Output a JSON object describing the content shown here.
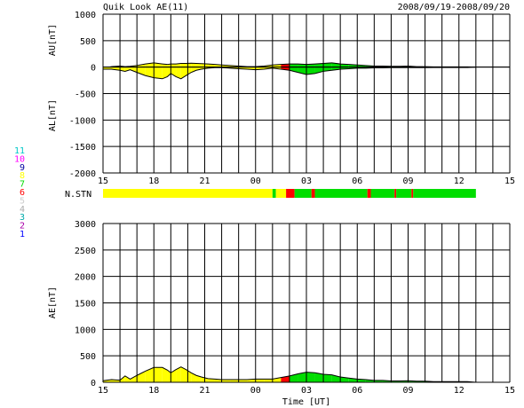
{
  "header": {
    "title": "Quik Look AE(11)",
    "date_range": "2008/09/19-2008/09/20"
  },
  "top_panel": {
    "upper_ylabel": "AU[nT]",
    "lower_ylabel": "AL[nT]",
    "yticks": [
      "1000",
      "500",
      "0",
      "-500",
      "-1000",
      "-1500",
      "-2000"
    ],
    "xticks": [
      "15",
      "18",
      "21",
      "00",
      "03",
      "06",
      "09",
      "12",
      "15"
    ]
  },
  "station_bar": {
    "label": "N.STN"
  },
  "bottom_panel": {
    "ylabel": "AE[nT]",
    "yticks": [
      "3000",
      "2500",
      "2000",
      "1500",
      "1000",
      "500",
      "0"
    ],
    "xticks": [
      "15",
      "18",
      "21",
      "00",
      "03",
      "06",
      "09",
      "12",
      "15"
    ],
    "xlabel": "Time [UT]"
  },
  "legend": {
    "levels": [
      {
        "label": "11",
        "color": "#00c8c8"
      },
      {
        "label": "10",
        "color": "#ff00ff"
      },
      {
        "label": "9",
        "color": "#0000a0"
      },
      {
        "label": "8",
        "color": "#ffff00"
      },
      {
        "label": "7",
        "color": "#00dd00"
      },
      {
        "label": "6",
        "color": "#ff0000"
      },
      {
        "label": "5",
        "color": "#cccccc"
      },
      {
        "label": "4",
        "color": "#aaaaaa"
      },
      {
        "label": "3",
        "color": "#00aaaa"
      },
      {
        "label": "2",
        "color": "#aa00aa"
      },
      {
        "label": "1",
        "color": "#0000ff"
      }
    ]
  },
  "chart_data": [
    {
      "type": "area",
      "x_units": "hours from 2008/09/19 15 UT",
      "ylim": [
        -2000,
        1000
      ],
      "xlim": [
        0,
        24
      ],
      "series": [
        {
          "x": [
            0,
            0.5,
            1.0,
            1.3,
            1.6,
            2.0,
            2.5,
            3.0,
            3.5,
            3.8,
            4.0,
            4.3,
            4.6,
            4.9,
            5.2,
            5.5,
            5.8,
            6.2,
            6.6,
            7.0,
            7.5,
            8.0,
            8.5,
            9.0,
            9.5,
            10.0,
            10.5,
            11.0,
            11.5,
            12.0,
            12.5,
            13.0,
            13.5,
            14.0,
            14.5,
            15.0,
            15.5,
            16.0,
            16.5,
            17.0,
            17.5,
            18.0,
            18.5,
            19.0,
            19.5,
            20.0,
            20.5,
            21.0,
            21.5,
            22.0
          ],
          "au": [
            -20,
            10,
            20,
            10,
            15,
            30,
            60,
            80,
            60,
            50,
            60,
            60,
            70,
            70,
            75,
            70,
            65,
            60,
            50,
            40,
            30,
            20,
            10,
            10,
            20,
            40,
            50,
            60,
            60,
            50,
            60,
            70,
            80,
            60,
            50,
            40,
            30,
            20,
            20,
            15,
            15,
            20,
            10,
            10,
            5,
            5,
            5,
            5,
            5,
            0
          ],
          "al": [
            -40,
            -40,
            -60,
            -80,
            -50,
            -100,
            -160,
            -200,
            -220,
            -180,
            -120,
            -180,
            -220,
            -160,
            -100,
            -60,
            -40,
            -20,
            -10,
            -10,
            -20,
            -30,
            -40,
            -50,
            -40,
            -20,
            -40,
            -60,
            -100,
            -140,
            -120,
            -80,
            -60,
            -40,
            -30,
            -20,
            -20,
            -15,
            -15,
            -10,
            -10,
            -10,
            -10,
            -10,
            -8,
            -8,
            -8,
            -8,
            -8,
            0
          ]
        }
      ]
    },
    {
      "type": "area",
      "x_units": "hours from 2008/09/19 15 UT",
      "ylim": [
        0,
        3000
      ],
      "xlim": [
        0,
        24
      ],
      "series": [
        {
          "x": [
            0,
            0.5,
            1.0,
            1.3,
            1.6,
            2.0,
            2.5,
            3.0,
            3.5,
            3.8,
            4.0,
            4.3,
            4.6,
            4.9,
            5.2,
            5.5,
            5.8,
            6.2,
            6.6,
            7.0,
            7.5,
            8.0,
            8.5,
            9.0,
            9.5,
            10.0,
            10.5,
            11.0,
            11.5,
            12.0,
            12.5,
            13.0,
            13.5,
            14.0,
            14.5,
            15.0,
            15.5,
            16.0,
            16.5,
            17.0,
            17.5,
            18.0,
            18.5,
            19.0,
            19.5,
            20.0,
            20.5,
            21.0,
            21.5,
            22.0
          ],
          "ae": [
            30,
            50,
            40,
            120,
            60,
            130,
            210,
            280,
            280,
            230,
            180,
            240,
            290,
            240,
            180,
            130,
            100,
            70,
            60,
            50,
            50,
            50,
            50,
            60,
            60,
            60,
            90,
            120,
            160,
            190,
            180,
            150,
            140,
            100,
            80,
            60,
            50,
            35,
            35,
            25,
            25,
            30,
            20,
            20,
            13,
            13,
            13,
            13,
            13,
            0
          ]
        }
      ]
    }
  ]
}
